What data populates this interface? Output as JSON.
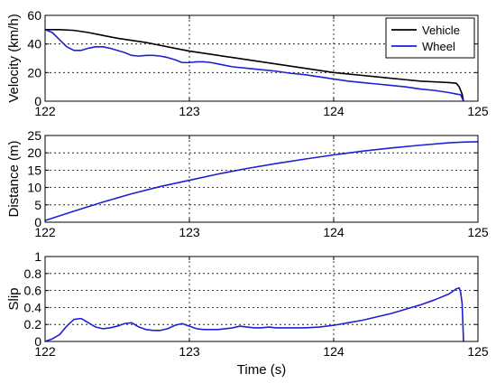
{
  "chart_data": [
    {
      "type": "line",
      "title": "",
      "xlabel": "",
      "ylabel": "Velocity (km/h)",
      "xlim": [
        122,
        125
      ],
      "ylim": [
        0,
        60
      ],
      "xticks": [
        "122",
        "123",
        "124",
        "125"
      ],
      "yticks": [
        "0",
        "20",
        "40",
        "60"
      ],
      "yticks_values": [
        0,
        20,
        40,
        60
      ],
      "grid": true,
      "legend": {
        "placement": "top-right"
      },
      "series": [
        {
          "name": "Vehicle",
          "color": "#000000",
          "x": [
            122.0,
            122.1,
            122.2,
            122.3,
            122.4,
            122.5,
            122.6,
            122.7,
            122.8,
            122.9,
            123.0,
            123.1,
            123.2,
            123.3,
            123.4,
            123.5,
            123.6,
            123.7,
            123.8,
            123.9,
            124.0,
            124.1,
            124.2,
            124.3,
            124.4,
            124.5,
            124.6,
            124.7,
            124.8,
            124.85,
            124.87,
            124.89,
            124.9
          ],
          "y": [
            50.0,
            50.0,
            49.5,
            48.0,
            46.0,
            44.0,
            42.5,
            41.0,
            39.0,
            37.0,
            35.0,
            33.5,
            32.0,
            30.5,
            29.0,
            27.5,
            26.0,
            24.5,
            23.0,
            21.5,
            20.0,
            19.0,
            18.0,
            17.0,
            16.0,
            15.0,
            14.0,
            13.5,
            13.0,
            12.5,
            10.0,
            5.0,
            0.0
          ]
        },
        {
          "name": "Wheel",
          "color": "#1f1fd6",
          "x": [
            122.0,
            122.05,
            122.1,
            122.15,
            122.2,
            122.25,
            122.3,
            122.35,
            122.4,
            122.45,
            122.5,
            122.55,
            122.6,
            122.65,
            122.7,
            122.75,
            122.8,
            122.85,
            122.9,
            122.95,
            123.0,
            123.05,
            123.1,
            123.15,
            123.2,
            123.3,
            123.4,
            123.5,
            123.6,
            123.7,
            123.8,
            123.9,
            124.0,
            124.1,
            124.2,
            124.3,
            124.4,
            124.5,
            124.6,
            124.7,
            124.8,
            124.85,
            124.88,
            124.9
          ],
          "y": [
            50.0,
            48.0,
            43.0,
            38.0,
            35.5,
            35.5,
            37.0,
            38.0,
            38.0,
            37.0,
            35.5,
            34.0,
            32.0,
            31.5,
            32.0,
            32.0,
            31.5,
            30.5,
            29.0,
            27.0,
            27.0,
            27.5,
            27.5,
            27.0,
            26.0,
            24.0,
            23.0,
            22.0,
            21.0,
            19.5,
            18.5,
            17.0,
            15.5,
            14.0,
            13.0,
            12.0,
            11.0,
            10.0,
            8.5,
            7.5,
            6.0,
            5.0,
            4.5,
            0.0
          ]
        }
      ]
    },
    {
      "type": "line",
      "title": "",
      "xlabel": "",
      "ylabel": "Distance (m)",
      "xlim": [
        122,
        125
      ],
      "ylim": [
        0,
        25
      ],
      "xticks": [
        "122",
        "123",
        "124",
        "125"
      ],
      "yticks": [
        "0",
        "5",
        "10",
        "15",
        "20",
        "25"
      ],
      "yticks_values": [
        0,
        5,
        10,
        15,
        20,
        25
      ],
      "grid": true,
      "series": [
        {
          "color": "#1f1fd6",
          "x": [
            122.0,
            122.2,
            122.4,
            122.6,
            122.8,
            123.0,
            123.2,
            123.4,
            123.6,
            123.8,
            124.0,
            124.2,
            124.4,
            124.6,
            124.8,
            124.9,
            125.0
          ],
          "y": [
            0.5,
            3.2,
            5.8,
            8.2,
            10.3,
            12.1,
            13.9,
            15.5,
            16.9,
            18.2,
            19.4,
            20.5,
            21.4,
            22.2,
            22.9,
            23.1,
            23.2
          ]
        }
      ]
    },
    {
      "type": "line",
      "title": "",
      "xlabel": "Time (s)",
      "ylabel": "Slip",
      "xlim": [
        122,
        125
      ],
      "ylim": [
        0,
        1
      ],
      "xticks": [
        "122",
        "123",
        "124",
        "125"
      ],
      "yticks": [
        "0",
        "0.2",
        "0.4",
        "0.6",
        "0.8",
        "1"
      ],
      "yticks_values": [
        0,
        0.2,
        0.4,
        0.6,
        0.8,
        1
      ],
      "grid": true,
      "series": [
        {
          "color": "#1f1fd6",
          "x": [
            122.0,
            122.05,
            122.1,
            122.15,
            122.2,
            122.25,
            122.3,
            122.35,
            122.4,
            122.45,
            122.5,
            122.55,
            122.6,
            122.65,
            122.7,
            122.75,
            122.8,
            122.85,
            122.9,
            122.95,
            123.0,
            123.05,
            123.1,
            123.2,
            123.3,
            123.35,
            123.4,
            123.45,
            123.5,
            123.55,
            123.6,
            123.7,
            123.8,
            123.9,
            124.0,
            124.1,
            124.2,
            124.3,
            124.4,
            124.5,
            124.6,
            124.7,
            124.8,
            124.85,
            124.87,
            124.88,
            124.89,
            124.9
          ],
          "y": [
            0.0,
            0.03,
            0.08,
            0.18,
            0.26,
            0.27,
            0.22,
            0.17,
            0.15,
            0.16,
            0.18,
            0.21,
            0.22,
            0.17,
            0.14,
            0.13,
            0.13,
            0.15,
            0.19,
            0.21,
            0.18,
            0.15,
            0.14,
            0.14,
            0.16,
            0.18,
            0.17,
            0.16,
            0.16,
            0.17,
            0.16,
            0.16,
            0.16,
            0.17,
            0.19,
            0.22,
            0.25,
            0.29,
            0.33,
            0.38,
            0.43,
            0.49,
            0.56,
            0.62,
            0.63,
            0.58,
            0.45,
            0.0
          ]
        }
      ]
    }
  ]
}
